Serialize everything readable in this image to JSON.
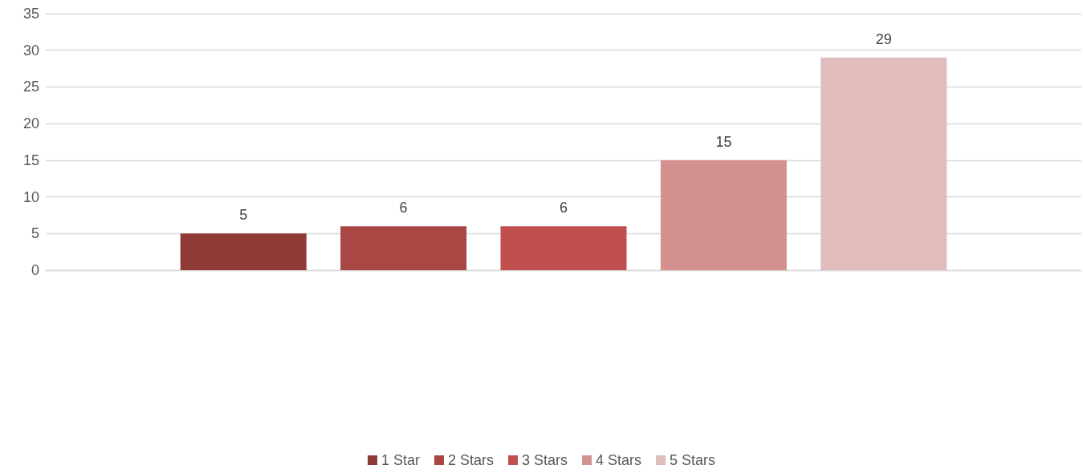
{
  "chart_data": {
    "type": "bar",
    "categories": [
      null
    ],
    "series": [
      {
        "name": "1 Star",
        "color": "#8e3a37",
        "values": [
          5
        ]
      },
      {
        "name": "2 Stars",
        "color": "#a94745",
        "values": [
          6
        ]
      },
      {
        "name": "3 Stars",
        "color": "#c0504d",
        "values": [
          6
        ]
      },
      {
        "name": "4 Stars",
        "color": "#d39190",
        "values": [
          15
        ]
      },
      {
        "name": "5 Stars",
        "color": "#e0bcbc",
        "values": [
          29
        ]
      }
    ],
    "ylim": [
      0,
      35
    ],
    "yticks": [
      0,
      5,
      10,
      15,
      20,
      25,
      30,
      35
    ],
    "grid": "y",
    "legend": "bottom",
    "data_labels": true
  }
}
